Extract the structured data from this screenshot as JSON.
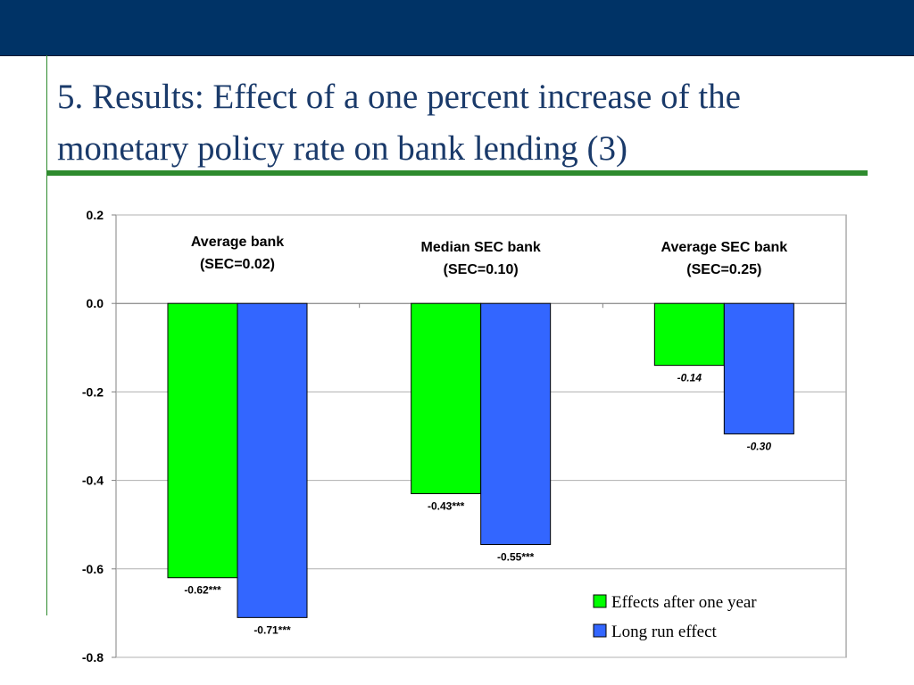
{
  "slide": {
    "title": "5. Results: Effect of a one percent increase of the monetary policy rate on bank lending (3)",
    "colors": {
      "header_bar": "#003366",
      "title_text": "#1a3a6a",
      "accent_rule": "#2e8b2e"
    }
  },
  "chart_data": {
    "type": "bar",
    "categories": [
      {
        "line1": "Average bank",
        "line2": "(SEC=0.02)"
      },
      {
        "line1": "Median SEC bank",
        "line2": "(SEC=0.10)"
      },
      {
        "line1": "Average SEC bank",
        "line2": "(SEC=0.25)"
      }
    ],
    "series": [
      {
        "name": "Effects after one year",
        "color": "#00ff00",
        "values": [
          -0.62,
          -0.43,
          -0.14
        ],
        "labels": [
          "-0.62***",
          "-0.43***",
          "-0.14"
        ],
        "label_italic": [
          false,
          false,
          true
        ]
      },
      {
        "name": "Long run effect",
        "color": "#3366ff",
        "values": [
          -0.71,
          -0.545,
          -0.295
        ],
        "labels": [
          "-0.71***",
          "-0.55***",
          "-0.30"
        ],
        "label_italic": [
          false,
          false,
          true
        ]
      }
    ],
    "ylim": [
      -0.8,
      0.2
    ],
    "yticks": [
      0.2,
      0.0,
      -0.2,
      -0.4,
      -0.6,
      -0.8
    ],
    "ytick_labels": [
      "0.2",
      "0.0",
      "-0.2",
      "-0.4",
      "-0.6",
      "-0.8"
    ],
    "grid": true,
    "legend_position": "bottom-right",
    "xlabel": "",
    "ylabel": ""
  }
}
